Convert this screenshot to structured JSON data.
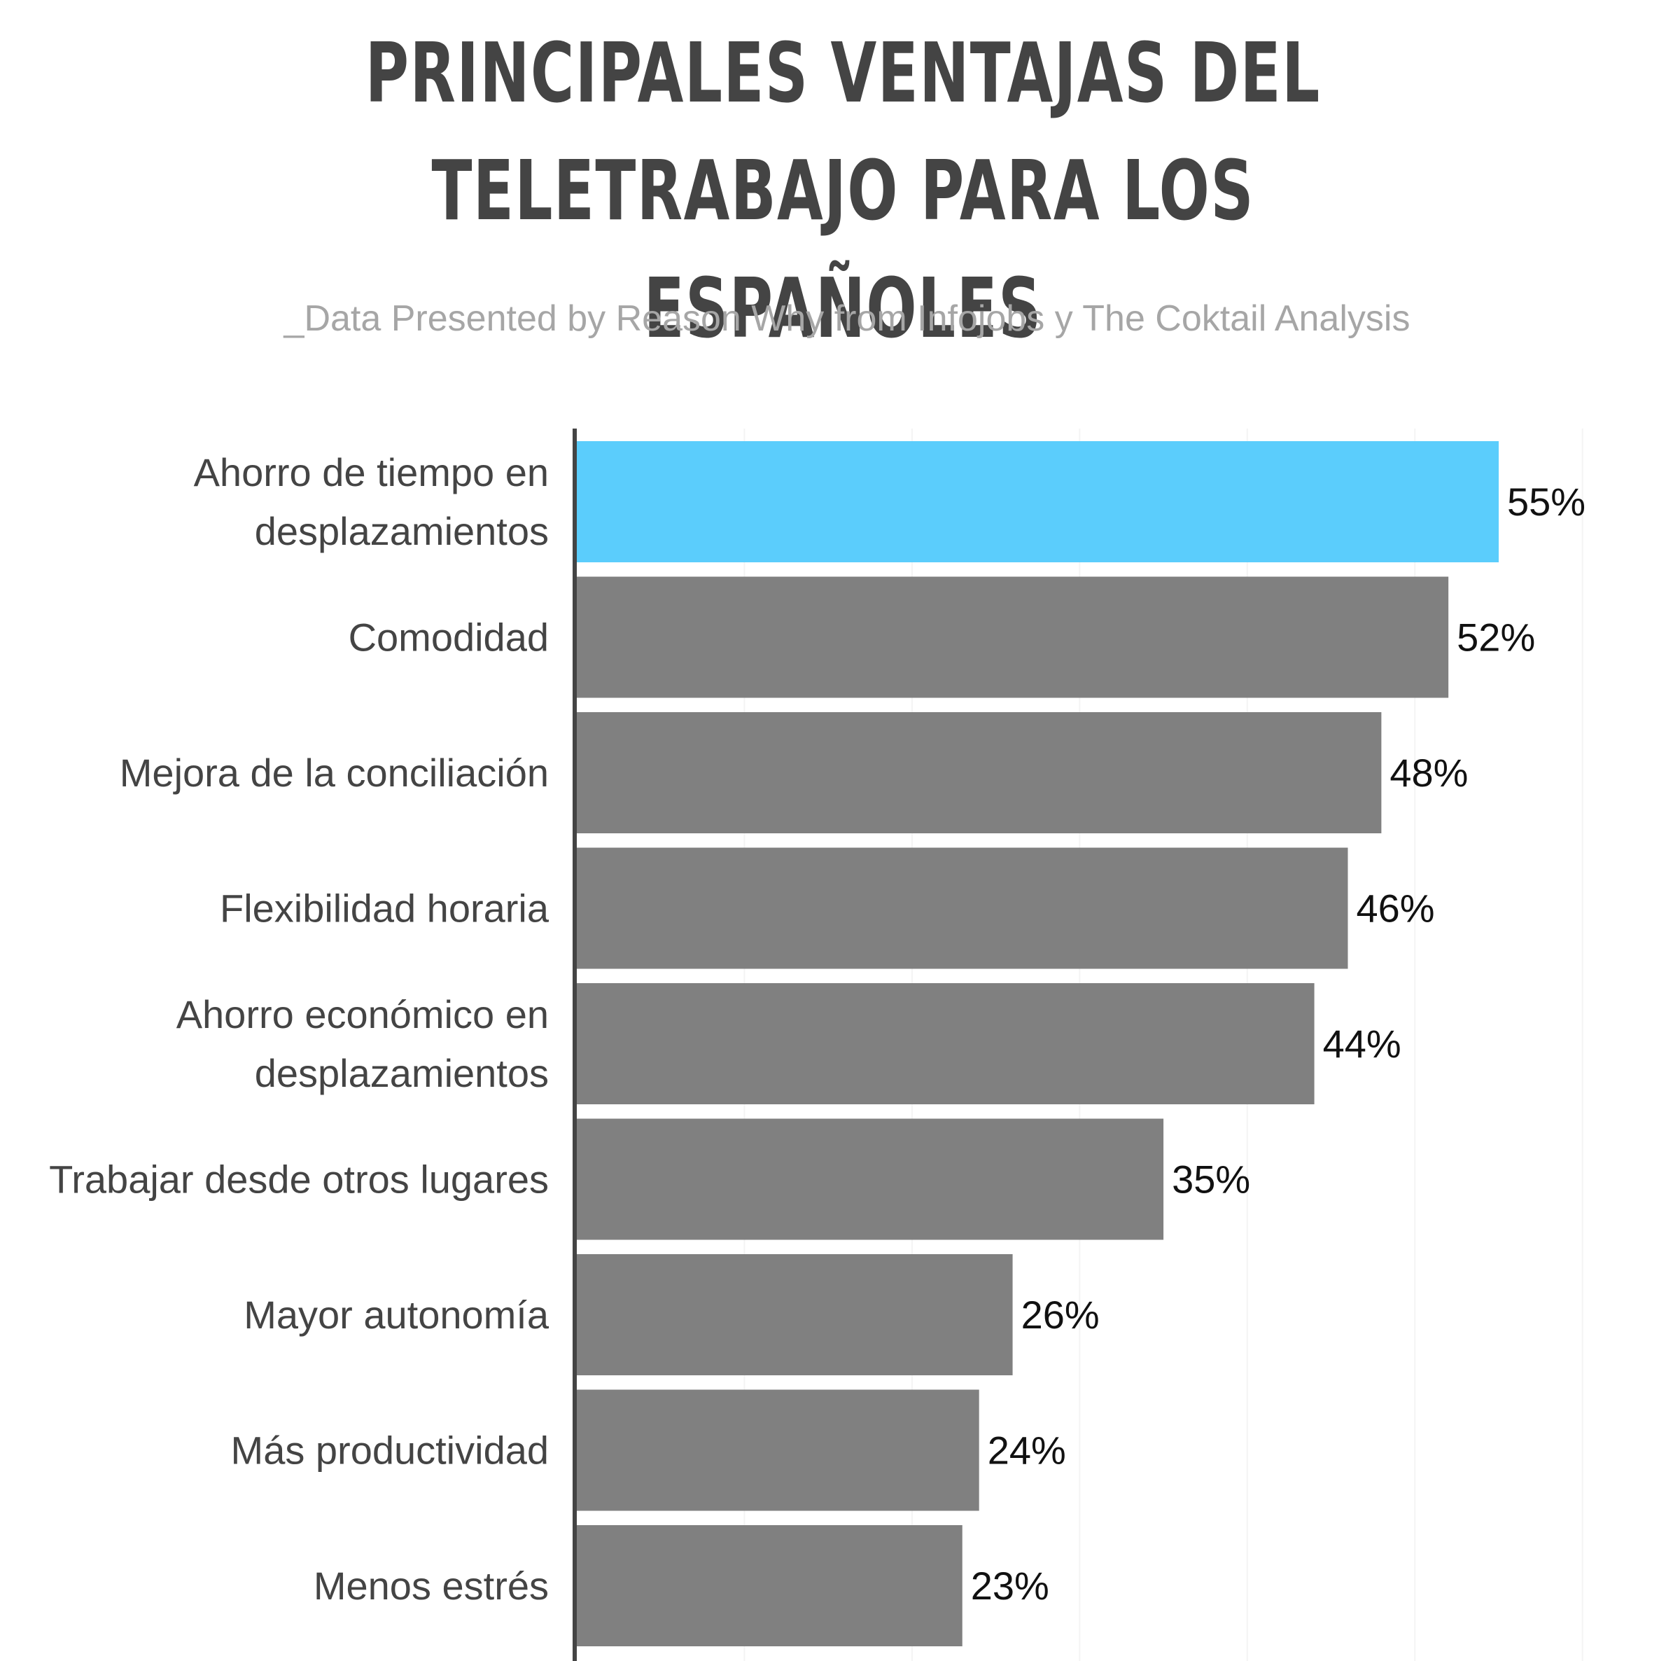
{
  "title_lines": [
    "PRINCIPALES VENTAJAS DEL",
    "TELETRABAJO PARA LOS ESPAÑOLES"
  ],
  "subtitle": "_Data Presented by Reason Why from Infojobs y The Coktail Analysis",
  "colors": {
    "highlight": "#5bcdfc",
    "bar": "#808080",
    "axis": "#444444",
    "grid": "#f4f4f4"
  },
  "chart_data": {
    "type": "bar",
    "orientation": "horizontal",
    "categories": [
      [
        "Ahorro de tiempo en",
        "desplazamientos"
      ],
      [
        "Comodidad"
      ],
      [
        "Mejora de la conciliación"
      ],
      [
        "Flexibilidad horaria"
      ],
      [
        "Ahorro económico en",
        "desplazamientos"
      ],
      [
        "Trabajar desde otros lugares"
      ],
      [
        "Mayor autonomía"
      ],
      [
        "Más productividad"
      ],
      [
        "Menos estrés"
      ]
    ],
    "values": [
      55,
      52,
      48,
      46,
      44,
      35,
      26,
      24,
      23
    ],
    "value_labels": [
      "55%",
      "52%",
      "48%",
      "46%",
      "44%",
      "35%",
      "26%",
      "24%",
      "23%"
    ],
    "highlight_index": 0,
    "xlim": [
      0,
      60
    ],
    "grid": true,
    "legend": "none"
  }
}
